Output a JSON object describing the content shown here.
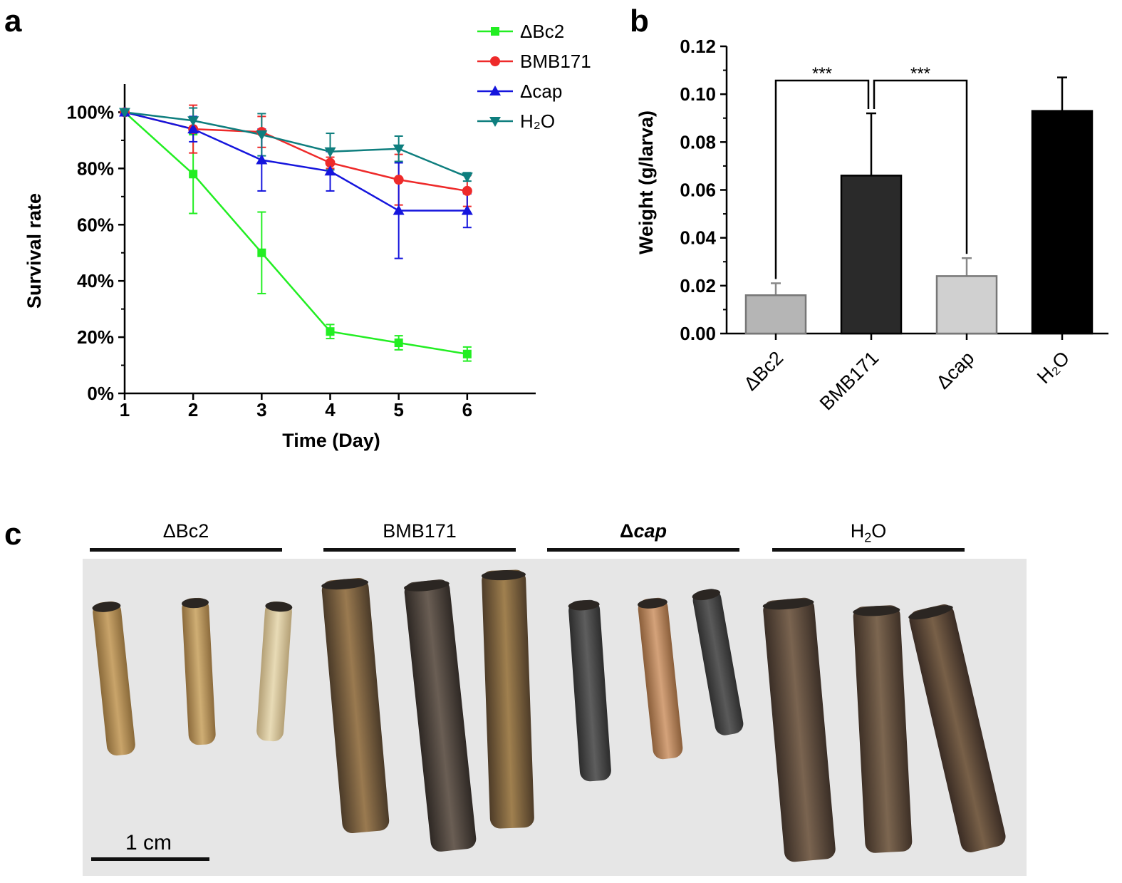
{
  "panels": {
    "a": "a",
    "b": "b",
    "c": "c"
  },
  "chart_data": [
    {
      "type": "line",
      "xlabel": "Time (Day)",
      "ylabel": "Survival rate",
      "x": [
        1,
        2,
        3,
        4,
        5,
        6
      ],
      "xlim": [
        1,
        7
      ],
      "ylim": [
        0,
        110
      ],
      "xticks": [
        "1",
        "2",
        "3",
        "4",
        "5",
        "6"
      ],
      "yticks": [
        "0%",
        "20%",
        "40%",
        "60%",
        "80%",
        "100%"
      ],
      "legend_position": "top-right",
      "series": [
        {
          "name": "ΔBc2",
          "color": "#22ee22",
          "marker": "square",
          "values": [
            100,
            78,
            50,
            22,
            18,
            14
          ],
          "errors": [
            0,
            14,
            14.5,
            2.5,
            2.5,
            2.5
          ]
        },
        {
          "name": "BMB171",
          "color": "#ee2a2a",
          "marker": "circle",
          "values": [
            100,
            94,
            93,
            82,
            76,
            72
          ],
          "errors": [
            0,
            8.5,
            5.5,
            2,
            9,
            5.5
          ]
        },
        {
          "name": "Δcap",
          "color": "#1515dd",
          "marker": "triangle-up",
          "values": [
            100,
            94,
            83,
            79,
            65,
            65
          ],
          "errors": [
            0,
            4.5,
            11,
            7,
            17,
            6
          ]
        },
        {
          "name": "H₂O",
          "color": "#0e7e7e",
          "marker": "triangle-down",
          "values": [
            100,
            97,
            92,
            86,
            87,
            77
          ],
          "errors": [
            0,
            4.5,
            7.5,
            6.5,
            4.5,
            1.5
          ]
        }
      ]
    },
    {
      "type": "bar",
      "ylabel": "Weight (g/larva)",
      "categories": [
        "ΔBc2",
        "BMB171",
        "Δcap",
        "H₂O"
      ],
      "values": [
        0.016,
        0.066,
        0.024,
        0.093
      ],
      "errors": [
        0.005,
        0.026,
        0.0075,
        0.014
      ],
      "ylim": [
        0,
        0.12
      ],
      "yticks": [
        "0.00",
        "0.02",
        "0.04",
        "0.06",
        "0.08",
        "0.10",
        "0.12"
      ],
      "bar_colors": [
        "#b5b5b5",
        "#2a2a2a",
        "#d0d0d0",
        "#000000"
      ],
      "significance": [
        {
          "between": [
            "ΔBc2",
            "BMB171"
          ],
          "label": "***"
        },
        {
          "between": [
            "BMB171",
            "Δcap"
          ],
          "label": "***"
        }
      ]
    }
  ],
  "photo": {
    "groups": [
      "ΔBc2",
      "BMB171",
      "Δcap",
      "H₂O"
    ],
    "scale_label": "1 cm"
  }
}
